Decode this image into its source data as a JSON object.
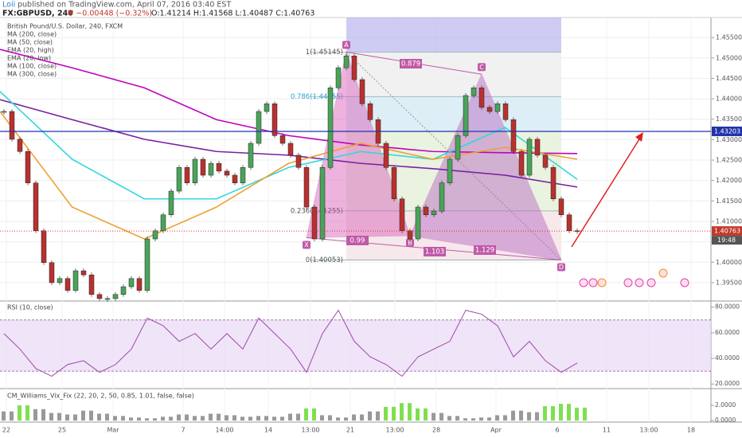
{
  "chart_data": {
    "type": "candlestick",
    "publisher": "Loii",
    "published": "published on TradingView.com, April 07, 2016 03:40 EST",
    "symbol": "FX:GBPUSD, 240",
    "change": "▼ −0.00448 (−0.32%)",
    "ohlc": "O:1.41214 H:1.41568 L:1.40487 C:1.40763",
    "legend": [
      "British Pound/U.S. Dollar, 240, FXCM",
      "MA (200, close)",
      "MA (50, close)",
      "EMA (20, high)",
      "EMA (20, low)",
      "MA (100, close)",
      "MA (300, close)"
    ],
    "up_color": "#4aa35a",
    "down_color": "#b8312f",
    "closes": [
      1.4369,
      1.4301,
      1.4271,
      1.4194,
      1.4077,
      1.3999,
      1.395,
      1.396,
      1.3931,
      1.3979,
      1.3969,
      1.3921,
      1.3911,
      1.3911,
      1.3921,
      1.394,
      1.396,
      1.3931,
      1.4057,
      1.4077,
      1.4116,
      1.4174,
      1.4232,
      1.4194,
      1.4252,
      1.4213,
      1.4242,
      1.4223,
      1.4213,
      1.4194,
      1.4232,
      1.4291,
      1.4369,
      1.4388,
      1.431,
      1.4291,
      1.4262,
      1.4232,
      1.4135,
      1.4057,
      1.4232,
      1.4427,
      1.4476,
      1.4505,
      1.4447,
      1.4388,
      1.4349,
      1.4291,
      1.4232,
      1.4155,
      1.4077,
      1.4057,
      1.4135,
      1.4116,
      1.4125,
      1.4194,
      1.4252,
      1.431,
      1.4408,
      1.4427,
      1.4379,
      1.4369,
      1.4388,
      1.4349,
      1.4271,
      1.4213,
      1.4301,
      1.4262,
      1.4232,
      1.4155,
      1.4116,
      1.4077,
      1.4076
    ],
    "series": [
      {
        "color": "#c000c0",
        "values": [
          1.4521,
          1.4476,
          1.4427,
          1.4349,
          1.431,
          1.4287,
          1.4271,
          1.4268,
          1.4266
        ]
      },
      {
        "color": "#7a1fa2",
        "values": [
          1.4398,
          1.4349,
          1.4301,
          1.4271,
          1.4262,
          1.4242,
          1.4229,
          1.4213,
          1.4184
        ]
      },
      {
        "color": "#2fd8e0",
        "values": [
          1.4418,
          1.4252,
          1.4155,
          1.4155,
          1.4232,
          1.4271,
          1.4252,
          1.433,
          1.4203
        ]
      },
      {
        "color": "#f0a030",
        "values": [
          1.4369,
          1.4135,
          1.4057,
          1.4135,
          1.4242,
          1.4291,
          1.4252,
          1.4281,
          1.4252
        ]
      }
    ],
    "ylim": [
      1.3905,
      1.4599
    ],
    "yticks": [
      {
        "value": 1.395,
        "label": "1.39500"
      },
      {
        "value": 1.4,
        "label": "1.40000"
      },
      {
        "value": 1.405,
        "label": "1.40500"
      },
      {
        "value": 1.41,
        "label": "1.41000"
      },
      {
        "value": 1.415,
        "label": "1.41500"
      },
      {
        "value": 1.42,
        "label": "1.42000"
      },
      {
        "value": 1.425,
        "label": "1.42500"
      },
      {
        "value": 1.43,
        "label": "1.43000"
      },
      {
        "value": 1.435,
        "label": "1.43500"
      },
      {
        "value": 1.44,
        "label": "1.44000"
      },
      {
        "value": 1.445,
        "label": "1.44500"
      },
      {
        "value": 1.45,
        "label": "1.45000"
      },
      {
        "value": 1.455,
        "label": "1.45500"
      }
    ],
    "hline": {
      "value": 1.43203,
      "label": "1.43203"
    },
    "last_price": {
      "value": 1.40763,
      "label": "1.40763"
    },
    "countdown": "19:48",
    "fib_levels": [
      {
        "value": 1.45145,
        "label": "1(1.45145)"
      },
      {
        "value": 1.44055,
        "label": "0.786(1.44055)"
      },
      {
        "value": 1.41255,
        "label": "0.236(1.41255)"
      },
      {
        "value": 1.40053,
        "label": "0(1.40053)"
      }
    ],
    "pattern": {
      "labels": [
        "X",
        "A",
        "B",
        "C",
        "D"
      ],
      "values": [
        1.406,
        1.45145,
        1.4065,
        1.446,
        1.40053
      ],
      "ratios": [
        "0.879",
        "0.99",
        "1.103",
        "1.129"
      ]
    },
    "xticks": [
      "22",
      "25",
      "Mar",
      "7",
      "14:00",
      "14",
      "13:00",
      "21",
      "13:00",
      "28",
      "Apr",
      "6",
      "11",
      "13:00",
      "18"
    ],
    "rsi": {
      "title": "RSI (10, close)",
      "color": "#9b4aa8",
      "ylim": [
        16.4,
        84.8
      ],
      "band": [
        30,
        70
      ],
      "yticks": [
        {
          "value": 20,
          "label": "20.0000"
        },
        {
          "value": 40,
          "label": "40.0000"
        },
        {
          "value": 60,
          "label": "60.0000"
        },
        {
          "value": 80,
          "label": "80.0000"
        }
      ],
      "values": [
        59.4,
        47.3,
        32.1,
        26.1,
        35.2,
        38.2,
        29.1,
        35.2,
        47.3,
        71.5,
        65.5,
        53.3,
        59.4,
        47.3,
        59.4,
        47.3,
        71.5,
        59.4,
        47.3,
        29.1,
        59.4,
        77.6,
        53.3,
        41.2,
        35.2,
        26.1,
        41.2,
        47.3,
        53.3,
        77.6,
        74.5,
        65.5,
        41.2,
        53.3,
        38.2,
        29.1,
        36.4
      ]
    },
    "vix": {
      "title": "CM_Williams_Vix_Fix (22, 20, 2, 50, 0.85, 1.01, false, false)",
      "ylim": [
        -0.2,
        4.2
      ],
      "yticks": [
        {
          "value": 0,
          "label": "0.0000"
        },
        {
          "value": 2,
          "label": "2.0000"
        }
      ],
      "values": [
        1.2,
        2.0,
        1.5,
        1.0,
        0.8,
        1.3,
        0.9,
        0.6,
        0.4,
        0.3,
        0.5,
        0.8,
        0.6,
        0.9,
        0.7,
        0.5,
        0.6,
        0.5,
        0.9,
        1.6,
        0.7,
        0.4,
        0.8,
        1.2,
        1.8,
        2.3,
        1.6,
        1.0,
        0.6,
        0.3,
        0.4,
        0.7,
        1.3,
        1.1,
        1.9,
        2.2,
        1.7
      ],
      "colors": [
        "#999",
        "#7ee04f",
        "#999",
        "#999",
        "#999",
        "#999",
        "#999",
        "#999",
        "#999",
        "#999",
        "#999",
        "#999",
        "#999",
        "#999",
        "#999",
        "#999",
        "#999",
        "#999",
        "#999",
        "#7ee04f",
        "#999",
        "#999",
        "#999",
        "#999",
        "#7ee04f",
        "#7ee04f",
        "#7ee04f",
        "#999",
        "#999",
        "#999",
        "#999",
        "#999",
        "#999",
        "#999",
        "#7ee04f",
        "#7ee04f",
        "#7ee04f"
      ]
    }
  }
}
